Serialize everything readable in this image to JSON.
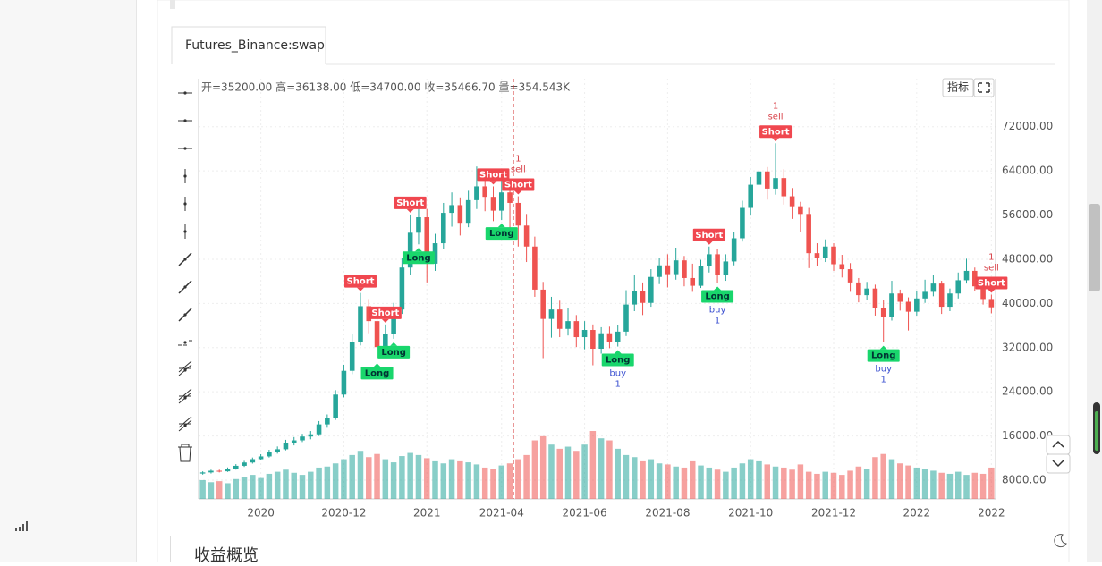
{
  "tab": "Futures_Binance:swap",
  "ohlc_info": "开=35200.00 高=36138.00 低=34700.00 收=35466.70 量=354.543K",
  "indicator_button": "指标",
  "section_title": "收益概览",
  "chart_data": {
    "type": "candlestick",
    "categories": [
      null,
      null,
      null,
      null,
      null,
      null,
      null,
      "2020",
      null,
      null,
      null,
      null,
      null,
      null,
      null,
      null,
      null,
      "2020-12",
      null,
      null,
      null,
      null,
      null,
      null,
      null,
      null,
      null,
      "2021",
      null,
      null,
      null,
      null,
      null,
      null,
      null,
      null,
      "2021-04",
      null,
      null,
      null,
      null,
      null,
      null,
      null,
      null,
      null,
      "2021-06",
      null,
      null,
      null,
      null,
      null,
      null,
      null,
      null,
      null,
      "2021-08",
      null,
      null,
      null,
      null,
      null,
      null,
      null,
      null,
      null,
      "2021-10",
      null,
      null,
      null,
      null,
      null,
      null,
      null,
      null,
      null,
      "2021-12",
      null,
      null,
      null,
      null,
      null,
      null,
      null,
      null,
      null,
      "2022",
      null,
      null,
      null,
      null,
      null,
      null,
      null,
      null,
      "2022"
    ],
    "open": [
      9200,
      9400,
      9700,
      9600,
      10100,
      10600,
      11200,
      11800,
      12300,
      13100,
      13600,
      14800,
      15200,
      15900,
      16300,
      18100,
      19200,
      23500,
      27800,
      33000,
      39500,
      36800,
      32100,
      34500,
      38900,
      46500,
      52800,
      55600,
      47200,
      50900,
      56400,
      57800,
      54600,
      58700,
      61200,
      59300,
      56800,
      60100,
      58200,
      54100,
      50300,
      42500,
      37200,
      38900,
      35400,
      36800,
      33900,
      35200,
      31800,
      34600,
      33100,
      34900,
      39800,
      42300,
      40100,
      44800,
      46900,
      45300,
      47800,
      44600,
      43200,
      46700,
      48900,
      45200,
      47600,
      51800,
      57300,
      61500,
      63900,
      60800,
      62700,
      59400,
      57600,
      56200,
      49100,
      48200,
      50300,
      47100,
      46200,
      43800,
      41500,
      42700,
      39200,
      37600,
      41800,
      40300,
      38500,
      40900,
      42100,
      43600,
      39400,
      41800,
      44200,
      45900,
      43100,
      40800
    ],
    "high": [
      9600,
      9900,
      9900,
      10300,
      10900,
      11500,
      12100,
      12700,
      13500,
      14100,
      15300,
      15800,
      16400,
      16900,
      18700,
      19900,
      24300,
      28900,
      34500,
      41900,
      40800,
      37900,
      36200,
      40100,
      48200,
      56100,
      58300,
      57100,
      52600,
      58200,
      60100,
      59200,
      60400,
      64800,
      63900,
      61200,
      62400,
      61800,
      59400,
      56200,
      52100,
      43900,
      41200,
      40500,
      39100,
      37900,
      36800,
      36200,
      35700,
      35800,
      36100,
      42400,
      45100,
      43800,
      46200,
      48300,
      48900,
      50100,
      48600,
      47200,
      47900,
      50300,
      49800,
      48900,
      52900,
      58600,
      62900,
      67000,
      64700,
      69000,
      64300,
      60900,
      58400,
      57300,
      50900,
      51600,
      50900,
      48800,
      47300,
      44600,
      43900,
      43400,
      40600,
      44100,
      42500,
      41100,
      42200,
      44300,
      45200,
      44100,
      42700,
      45600,
      48100,
      46500,
      44200,
      41600
    ],
    "low": [
      9000,
      9200,
      9400,
      9500,
      9900,
      10400,
      11000,
      11600,
      12100,
      12800,
      13400,
      14300,
      14900,
      15400,
      16000,
      17500,
      18900,
      23000,
      27200,
      32400,
      34600,
      29800,
      30900,
      33600,
      38100,
      45200,
      50700,
      43800,
      45900,
      49800,
      53900,
      52300,
      53800,
      57100,
      56700,
      54900,
      55100,
      51600,
      50300,
      47500,
      41200,
      30100,
      33800,
      33900,
      34200,
      32100,
      31700,
      28800,
      30900,
      31900,
      32200,
      34100,
      38600,
      37900,
      39400,
      43500,
      42900,
      44300,
      43100,
      42100,
      42800,
      45600,
      43700,
      44100,
      46900,
      51200,
      55900,
      60300,
      58800,
      59700,
      57900,
      55300,
      52900,
      46400,
      46800,
      47500,
      45900,
      44700,
      42100,
      40200,
      40600,
      37800,
      33000,
      36900,
      38700,
      35100,
      37800,
      40100,
      41300,
      38100,
      38600,
      40900,
      43600,
      42300,
      39800,
      38200
    ],
    "close": [
      9400,
      9700,
      9600,
      10100,
      10600,
      11200,
      11800,
      12300,
      13100,
      13600,
      14800,
      15200,
      15900,
      16300,
      18100,
      19200,
      23500,
      27800,
      33000,
      39500,
      36800,
      32100,
      34500,
      38900,
      46500,
      52800,
      55600,
      47200,
      50900,
      56400,
      57800,
      54600,
      58700,
      61200,
      59300,
      56800,
      60100,
      58200,
      54100,
      50300,
      42500,
      37200,
      38900,
      35400,
      36800,
      33900,
      35200,
      31800,
      34600,
      33100,
      34900,
      39800,
      42300,
      40100,
      44800,
      46900,
      45300,
      47800,
      44600,
      43200,
      46700,
      48900,
      45200,
      47600,
      51800,
      57300,
      61500,
      63900,
      60800,
      62700,
      59400,
      57600,
      56200,
      49100,
      48200,
      50300,
      47100,
      46200,
      43800,
      41500,
      42700,
      39200,
      37600,
      41800,
      40300,
      38500,
      40900,
      42100,
      43600,
      39400,
      41800,
      44200,
      45900,
      43100,
      40800,
      39300
    ],
    "volume": [
      180,
      160,
      170,
      150,
      190,
      210,
      230,
      200,
      240,
      260,
      280,
      250,
      230,
      260,
      300,
      310,
      340,
      380,
      420,
      460,
      400,
      430,
      380,
      350,
      410,
      440,
      420,
      390,
      360,
      340,
      380,
      360,
      350,
      330,
      300,
      290,
      320,
      340,
      380,
      420,
      560,
      600,
      520,
      480,
      500,
      460,
      520,
      650,
      580,
      560,
      480,
      420,
      400,
      360,
      380,
      340,
      330,
      310,
      300,
      360,
      320,
      300,
      280,
      260,
      300,
      340,
      380,
      360,
      330,
      310,
      300,
      280,
      330,
      260,
      240,
      260,
      250,
      230,
      270,
      310,
      290,
      400,
      430,
      380,
      340,
      320,
      300,
      290,
      270,
      250,
      240,
      260,
      230,
      250,
      240,
      300
    ],
    "ylim": [
      4600,
      80700
    ],
    "yticks": [
      {
        "value": 8000,
        "label": "8000.00"
      },
      {
        "value": 16000,
        "label": "16000.00"
      },
      {
        "value": 24000,
        "label": "24000.00"
      },
      {
        "value": 32000,
        "label": "32000.00"
      },
      {
        "value": 40000,
        "label": "40000.00"
      },
      {
        "value": 48000,
        "label": "48000.00"
      },
      {
        "value": 56000,
        "label": "56000.00"
      },
      {
        "value": 64000,
        "label": "64000.00"
      },
      {
        "value": 72000,
        "label": "72000.00"
      }
    ],
    "grid": true,
    "up_color": "#26a69a",
    "down_color": "#ef5350",
    "markers": [
      {
        "bar": 19,
        "label": "Short"
      },
      {
        "bar": 21,
        "label": "Long"
      },
      {
        "bar": 22,
        "label": "Short"
      },
      {
        "bar": 23,
        "label": "Long"
      },
      {
        "bar": 25,
        "label": "Short"
      },
      {
        "bar": 26,
        "label": "Long"
      },
      {
        "bar": 35,
        "label": "Short"
      },
      {
        "bar": 36,
        "label": "Long"
      },
      {
        "bar": 38,
        "label": "Short",
        "note": "sell",
        "qty": 1
      },
      {
        "bar": 50,
        "label": "Long",
        "note": "buy",
        "qty": 1
      },
      {
        "bar": 61,
        "label": "Short"
      },
      {
        "bar": 62,
        "label": "Long",
        "note": "buy",
        "qty": 1
      },
      {
        "bar": 69,
        "label": "Short",
        "note": "sell",
        "qty": 1
      },
      {
        "bar": 82,
        "label": "Long",
        "note": "buy",
        "qty": 1
      },
      {
        "bar": 95,
        "label": "Short",
        "note": "sell",
        "qty": 1
      }
    ]
  }
}
